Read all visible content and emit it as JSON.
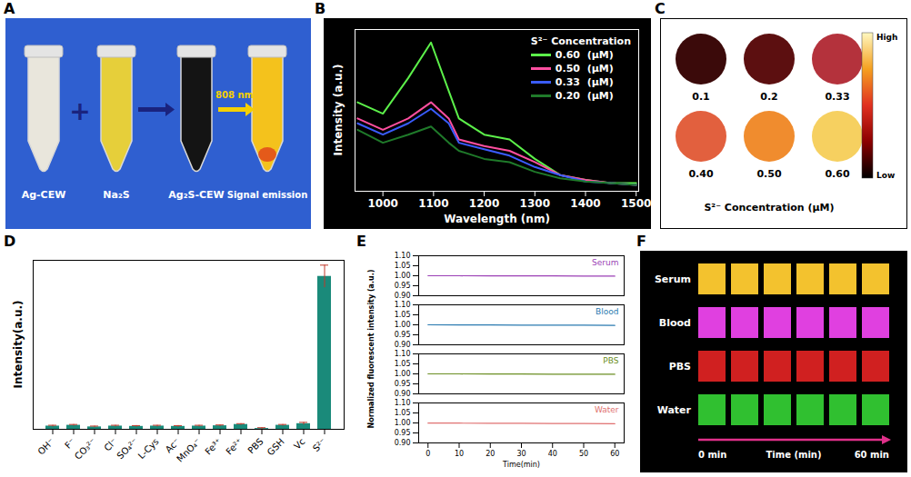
{
  "panel_letters": [
    "A",
    "B",
    "C",
    "D",
    "E",
    "F"
  ],
  "panels": {
    "A": {
      "tubes": [
        {
          "label": "Ag-CEW",
          "color": "#e9e6dc"
        },
        {
          "label": "Na₂S",
          "color": "#e6cf3a"
        },
        {
          "label": "Ag₂S-CEW",
          "color": "#141414"
        },
        {
          "label": "Signal emission",
          "color": "#f4c21c"
        }
      ],
      "plus": "+",
      "laser": "808 nm"
    },
    "C": {
      "circles": [
        {
          "label": "0.1",
          "color": "#3b0a0a"
        },
        {
          "label": "0.2",
          "color": "#5c0f10"
        },
        {
          "label": "0.33",
          "color": "#b4323c"
        },
        {
          "label": "0.40",
          "color": "#e2603e"
        },
        {
          "label": "0.50",
          "color": "#f08c2e"
        },
        {
          "label": "0.60",
          "color": "#f6d060"
        }
      ],
      "colorbar": {
        "high": "High",
        "low": "Low",
        "colors": [
          "#000000",
          "#8b0000",
          "#e03020",
          "#f5a020",
          "#fff8c0"
        ]
      },
      "caption": "S²⁻ Concentration (μM)"
    },
    "F": {
      "rows": [
        {
          "label": "Serum",
          "cells": [
            "#f3c22e",
            "#f3c22e",
            "#f3c22e",
            "#f3c22e",
            "#f3c22e",
            "#f3c22e"
          ]
        },
        {
          "label": "Blood",
          "cells": [
            "#e040e0",
            "#e040e0",
            "#e040e0",
            "#e040e0",
            "#e040e0",
            "#e040e0"
          ]
        },
        {
          "label": "PBS",
          "cells": [
            "#d02020",
            "#d02020",
            "#d02020",
            "#d02020",
            "#d02020",
            "#d02020"
          ]
        },
        {
          "label": "Water",
          "cells": [
            "#30c030",
            "#30c030",
            "#30c030",
            "#30c030",
            "#30c030",
            "#30c030"
          ]
        }
      ],
      "time_start": "0 min",
      "time_label": "Time (min)",
      "time_end": "60 min"
    }
  },
  "chart_data": [
    {
      "type": "line",
      "x_label": "Wavelength (nm)",
      "y_label": "Intensity (a.u.)",
      "legend_title": "S²⁻ Concentration",
      "legend": "top-right",
      "tick_labels": "x",
      "x": [
        950,
        1000,
        1050,
        1095,
        1130,
        1150,
        1200,
        1250,
        1300,
        1350,
        1400,
        1450,
        1500
      ],
      "xlim": [
        945,
        1505
      ],
      "xticks": [
        1000,
        1100,
        1200,
        1300,
        1400,
        1500
      ],
      "ylim": [
        0,
        1
      ],
      "yticks": [],
      "series": [
        {
          "name": "0.60  (μM)",
          "color": "#5cf04a",
          "values": [
            0.55,
            0.48,
            0.7,
            0.92,
            0.62,
            0.45,
            0.35,
            0.32,
            0.2,
            0.1,
            0.07,
            0.05,
            0.05
          ]
        },
        {
          "name": "0.50  (μM)",
          "color": "#ff4fa0",
          "values": [
            0.45,
            0.38,
            0.45,
            0.55,
            0.45,
            0.32,
            0.28,
            0.25,
            0.18,
            0.1,
            0.07,
            0.05,
            0.04
          ]
        },
        {
          "name": "0.33  (μM)",
          "color": "#3a5cff",
          "values": [
            0.42,
            0.35,
            0.42,
            0.51,
            0.42,
            0.3,
            0.26,
            0.22,
            0.15,
            0.1,
            0.06,
            0.05,
            0.04
          ]
        },
        {
          "name": "0.20  (μM)",
          "color": "#1f7a2a",
          "values": [
            0.38,
            0.3,
            0.35,
            0.4,
            0.3,
            0.25,
            0.2,
            0.18,
            0.12,
            0.08,
            0.06,
            0.05,
            0.04
          ]
        }
      ]
    },
    {
      "type": "bar",
      "y_label": "Intensity(a.u.)",
      "tick_labels": "x",
      "categories": [
        "OH⁻",
        "F⁻",
        "CO₃²⁻",
        "Cl⁻",
        "SO₄²⁻",
        "L-Cys",
        "Ac⁻",
        "MnO₄⁻",
        "Fe³⁺",
        "Fe²⁺",
        "PBS",
        "GSH",
        "Vc",
        "S²⁻"
      ],
      "values": [
        0.02,
        0.025,
        0.015,
        0.02,
        0.018,
        0.02,
        0.018,
        0.02,
        0.022,
        0.03,
        0.005,
        0.025,
        0.035,
        0.95
      ],
      "errors": [
        0.005,
        0.005,
        0.005,
        0.005,
        0.005,
        0.005,
        0.005,
        0.005,
        0.005,
        0.005,
        0.005,
        0.005,
        0.008,
        0.07
      ],
      "color": "#1a8a7a",
      "ylim": [
        0,
        1.05
      ],
      "yticks": []
    },
    {
      "type": "line",
      "x_label": "Time(min)",
      "y_label": "Normalized fluorescent intensity (a.u.)",
      "legend": "top-right",
      "x": [
        0,
        10,
        20,
        30,
        40,
        50,
        60
      ],
      "xlim": [
        -3,
        63
      ],
      "xticks": [
        0,
        10,
        20,
        30,
        40,
        50,
        60
      ],
      "ylim": [
        0.9,
        1.1
      ],
      "yticks": [
        {
          "value": 0.9,
          "label": "0.90"
        },
        {
          "value": 0.95,
          "label": "0.95"
        },
        {
          "value": 1.0,
          "label": "1.00"
        },
        {
          "value": 1.05,
          "label": "1.05"
        },
        {
          "value": 1.1,
          "label": "1.10"
        }
      ],
      "series": [
        {
          "name": "Serum",
          "color": "#9b3fb5",
          "values": [
            1.0,
            1.0,
            0.999,
            0.999,
            0.999,
            0.998,
            0.998
          ]
        },
        {
          "name": "Blood",
          "color": "#2a7ab0",
          "values": [
            1.0,
            0.999,
            0.999,
            0.998,
            0.998,
            0.998,
            0.997
          ]
        },
        {
          "name": "PBS",
          "color": "#6b8e23",
          "values": [
            1.0,
            1.0,
            0.999,
            0.999,
            0.998,
            0.998,
            0.998
          ]
        },
        {
          "name": "Water",
          "color": "#e07070",
          "values": [
            0.999,
            0.999,
            0.998,
            0.998,
            0.997,
            0.997,
            0.996
          ]
        }
      ]
    }
  ]
}
